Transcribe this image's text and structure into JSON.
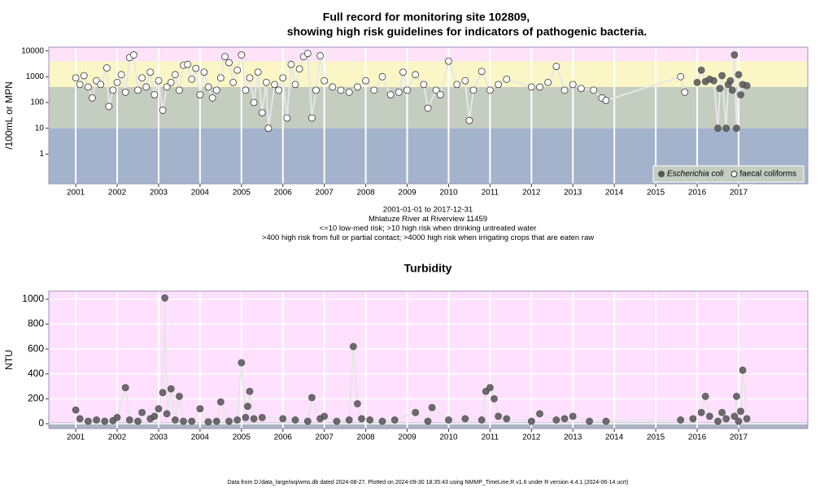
{
  "chart_data": [
    {
      "type": "scatter",
      "title": [
        "Full record for monitoring site 102809,",
        "showing high risk guidelines for indicators of pathogenic bacteria."
      ],
      "ylabel": "/100mL or MPN",
      "log_y": true,
      "ylim": [
        0.07,
        14000
      ],
      "yticks": [
        1,
        10,
        100,
        1000,
        10000
      ],
      "xlim": [
        2000.35,
        2018.67
      ],
      "xticks": [
        2001,
        2002,
        2003,
        2004,
        2005,
        2006,
        2007,
        2008,
        2009,
        2010,
        2011,
        2012,
        2013,
        2014,
        2015,
        2016,
        2017
      ],
      "grid": "x",
      "legend": "bottom right",
      "bands": [
        {
          "to": 10,
          "color": "#a3b3cc"
        },
        {
          "from": 10,
          "to": 400,
          "color": "#c4cdc0"
        },
        {
          "from": 400,
          "to": 4000,
          "color": "#fbf6c6"
        },
        {
          "from": 4000,
          "color": "#fde2f8"
        }
      ],
      "notes": [
        "2001-01-01 to 2017-12-31",
        "Mhlatuze River at Riverview 11459",
        "<=10 low-med risk; >10 high risk when drinking untreated water",
        ">400 high risk from full or partial contact; >4000 high risk when irrigating crops that are eaten raw"
      ],
      "series": [
        {
          "name": "Escherichia coli",
          "color": "#555555",
          "filled": true,
          "x": [
            2016.0,
            2016.1,
            2016.2,
            2016.3,
            2016.4,
            2016.5,
            2016.55,
            2016.6,
            2016.7,
            2016.75,
            2016.8,
            2016.85,
            2016.9,
            2016.95,
            2017.0,
            2017.05,
            2017.1,
            2017.2
          ],
          "values": [
            600,
            1800,
            650,
            800,
            700,
            10,
            350,
            1100,
            10,
            500,
            700,
            300,
            7000,
            10,
            1200,
            200,
            500,
            450
          ]
        },
        {
          "name": "faecal coliforms",
          "color": "#ffffff",
          "filled": false,
          "x": [
            2001.0,
            2001.1,
            2001.2,
            2001.3,
            2001.4,
            2001.5,
            2001.6,
            2001.75,
            2001.8,
            2001.9,
            2002.0,
            2002.1,
            2002.2,
            2002.3,
            2002.4,
            2002.5,
            2002.6,
            2002.7,
            2002.8,
            2002.9,
            2003.0,
            2003.1,
            2003.2,
            2003.3,
            2003.4,
            2003.5,
            2003.6,
            2003.7,
            2003.8,
            2003.9,
            2004.0,
            2004.1,
            2004.2,
            2004.3,
            2004.4,
            2004.5,
            2004.6,
            2004.7,
            2004.8,
            2004.9,
            2005.0,
            2005.1,
            2005.2,
            2005.3,
            2005.4,
            2005.5,
            2005.6,
            2005.65,
            2005.8,
            2005.9,
            2006.0,
            2006.1,
            2006.2,
            2006.3,
            2006.4,
            2006.5,
            2006.6,
            2006.7,
            2006.8,
            2006.9,
            2007.0,
            2007.2,
            2007.4,
            2007.6,
            2007.8,
            2008.0,
            2008.2,
            2008.4,
            2008.6,
            2008.8,
            2008.9,
            2009.0,
            2009.2,
            2009.4,
            2009.5,
            2009.7,
            2009.8,
            2010.0,
            2010.2,
            2010.4,
            2010.5,
            2010.6,
            2010.8,
            2011.0,
            2011.2,
            2011.4,
            2012.0,
            2012.2,
            2012.4,
            2012.6,
            2012.8,
            2013.0,
            2013.2,
            2013.5,
            2013.7,
            2013.8,
            2015.6,
            2015.7
          ],
          "values": [
            900,
            500,
            1100,
            400,
            150,
            700,
            500,
            2200,
            70,
            300,
            600,
            1200,
            250,
            5500,
            7000,
            300,
            900,
            400,
            1500,
            200,
            700,
            50,
            400,
            600,
            1200,
            300,
            2800,
            3000,
            800,
            2100,
            200,
            1500,
            400,
            150,
            300,
            900,
            6000,
            3500,
            600,
            1800,
            7000,
            300,
            900,
            100,
            1500,
            40,
            600,
            10,
            500,
            300,
            900,
            25,
            3000,
            500,
            2000,
            6000,
            8000,
            25,
            300,
            6500,
            700,
            400,
            300,
            250,
            400,
            700,
            300,
            1000,
            200,
            250,
            1500,
            300,
            1200,
            500,
            60,
            300,
            200,
            4000,
            500,
            700,
            20,
            300,
            1600,
            300,
            500,
            800,
            400,
            400,
            600,
            2500,
            300,
            500,
            350,
            300,
            150,
            120,
            1000,
            250
          ]
        }
      ]
    },
    {
      "type": "scatter",
      "title": "Turbidity",
      "ylabel": "NTU",
      "ylim": [
        -39,
        1065
      ],
      "yticks": [
        0,
        200,
        400,
        600,
        800,
        1000
      ],
      "xlim": [
        2000.35,
        2018.67
      ],
      "xticks": [
        2001,
        2002,
        2003,
        2004,
        2005,
        2006,
        2007,
        2008,
        2009,
        2010,
        2011,
        2012,
        2013,
        2014,
        2015,
        2016,
        2017
      ],
      "grid": "xy",
      "background": "#ffe0ff",
      "bands": [
        {
          "to": 10,
          "color": "#a9b5c2"
        }
      ],
      "series": [
        {
          "color": "#555555",
          "filled": true,
          "x": [
            2001.0,
            2001.1,
            2001.3,
            2001.5,
            2001.7,
            2001.9,
            2002.0,
            2002.2,
            2002.3,
            2002.5,
            2002.6,
            2002.8,
            2002.9,
            2003.0,
            2003.1,
            2003.15,
            2003.2,
            2003.3,
            2003.4,
            2003.5,
            2003.6,
            2003.8,
            2004.0,
            2004.2,
            2004.4,
            2004.5,
            2004.7,
            2004.9,
            2005.0,
            2005.1,
            2005.15,
            2005.2,
            2005.3,
            2005.5,
            2006.0,
            2006.3,
            2006.6,
            2006.7,
            2006.9,
            2007.0,
            2007.3,
            2007.6,
            2007.7,
            2007.8,
            2007.9,
            2008.1,
            2008.4,
            2008.7,
            2009.2,
            2009.5,
            2009.6,
            2010.0,
            2010.4,
            2010.8,
            2010.9,
            2011.0,
            2011.1,
            2011.2,
            2011.4,
            2012.0,
            2012.2,
            2012.6,
            2012.8,
            2013.0,
            2013.4,
            2013.8,
            2015.6,
            2015.9,
            2016.1,
            2016.2,
            2016.3,
            2016.5,
            2016.6,
            2016.7,
            2016.9,
            2016.95,
            2017.0,
            2017.05,
            2017.1,
            2017.2
          ],
          "values": [
            110,
            40,
            20,
            30,
            20,
            25,
            50,
            290,
            30,
            20,
            90,
            40,
            60,
            120,
            250,
            1010,
            80,
            280,
            30,
            220,
            20,
            20,
            120,
            15,
            20,
            175,
            20,
            30,
            490,
            50,
            140,
            260,
            40,
            50,
            40,
            30,
            20,
            210,
            40,
            60,
            20,
            30,
            620,
            160,
            40,
            30,
            20,
            30,
            90,
            20,
            130,
            30,
            40,
            30,
            260,
            290,
            200,
            60,
            40,
            20,
            80,
            30,
            40,
            60,
            20,
            20,
            30,
            40,
            90,
            220,
            60,
            20,
            90,
            40,
            60,
            220,
            20,
            100,
            430,
            40
          ]
        }
      ]
    }
  ],
  "footer": "Data from D:/data_large/wq/wms.db dated 2024-08-27. Plotted on 2024-09-30 18:35:43 using NMMP_TimeLine.R v1.6 under R version 4.4.1 (2024-06-14 ucrt)"
}
